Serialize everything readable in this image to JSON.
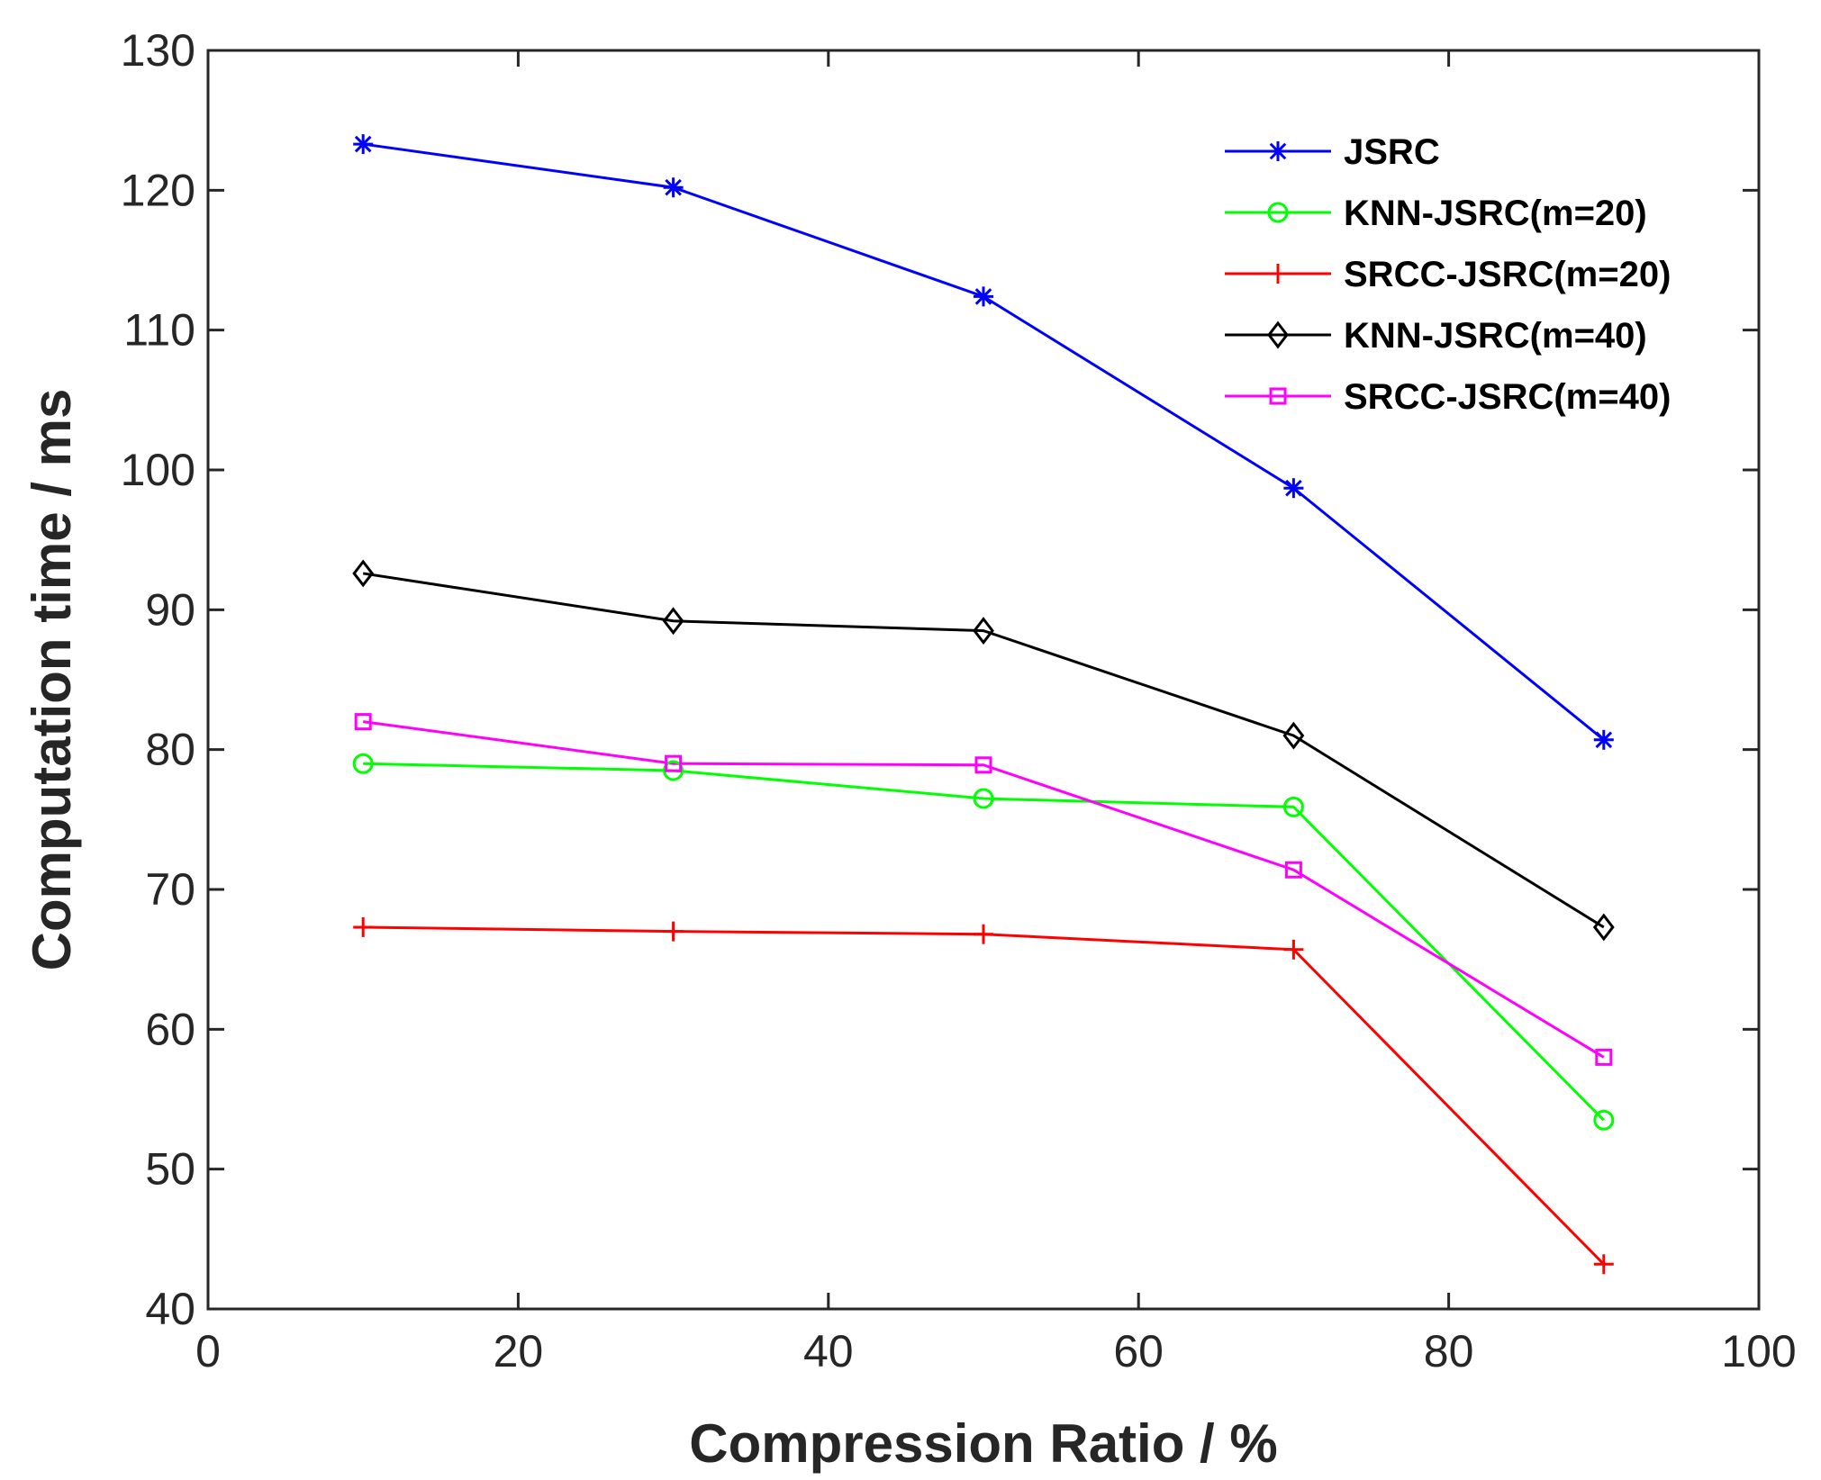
{
  "chart_data": {
    "type": "line",
    "title": "",
    "xlabel": "Compression Ratio / %",
    "ylabel": "Computation time / ms",
    "xlim": [
      0,
      100
    ],
    "ylim": [
      40,
      130
    ],
    "xticks": [
      0,
      20,
      40,
      60,
      80,
      100
    ],
    "yticks": [
      40,
      50,
      60,
      70,
      80,
      90,
      100,
      110,
      120,
      130
    ],
    "grid": false,
    "legend_position": "top-right",
    "x": [
      10,
      30,
      50,
      70,
      90
    ],
    "series": [
      {
        "name": "JSRC",
        "color": "#0000ff",
        "marker": "asterisk",
        "values": [
          123.3,
          120.2,
          112.4,
          98.7,
          80.7
        ]
      },
      {
        "name": "KNN-JSRC(m=20)",
        "color": "#00ff00",
        "marker": "circle",
        "values": [
          79.0,
          78.5,
          76.5,
          75.9,
          53.5
        ]
      },
      {
        "name": "SRCC-JSRC(m=20)",
        "color": "#ff0000",
        "marker": "plus",
        "values": [
          67.3,
          67.0,
          66.8,
          65.7,
          43.2
        ]
      },
      {
        "name": "KNN-JSRC(m=40)",
        "color": "#000000",
        "marker": "diamond",
        "values": [
          92.6,
          89.2,
          88.5,
          81.0,
          67.3
        ]
      },
      {
        "name": "SRCC-JSRC(m=40)",
        "color": "#ff00ff",
        "marker": "square",
        "values": [
          82.0,
          79.0,
          78.9,
          71.4,
          58.0
        ]
      }
    ]
  }
}
